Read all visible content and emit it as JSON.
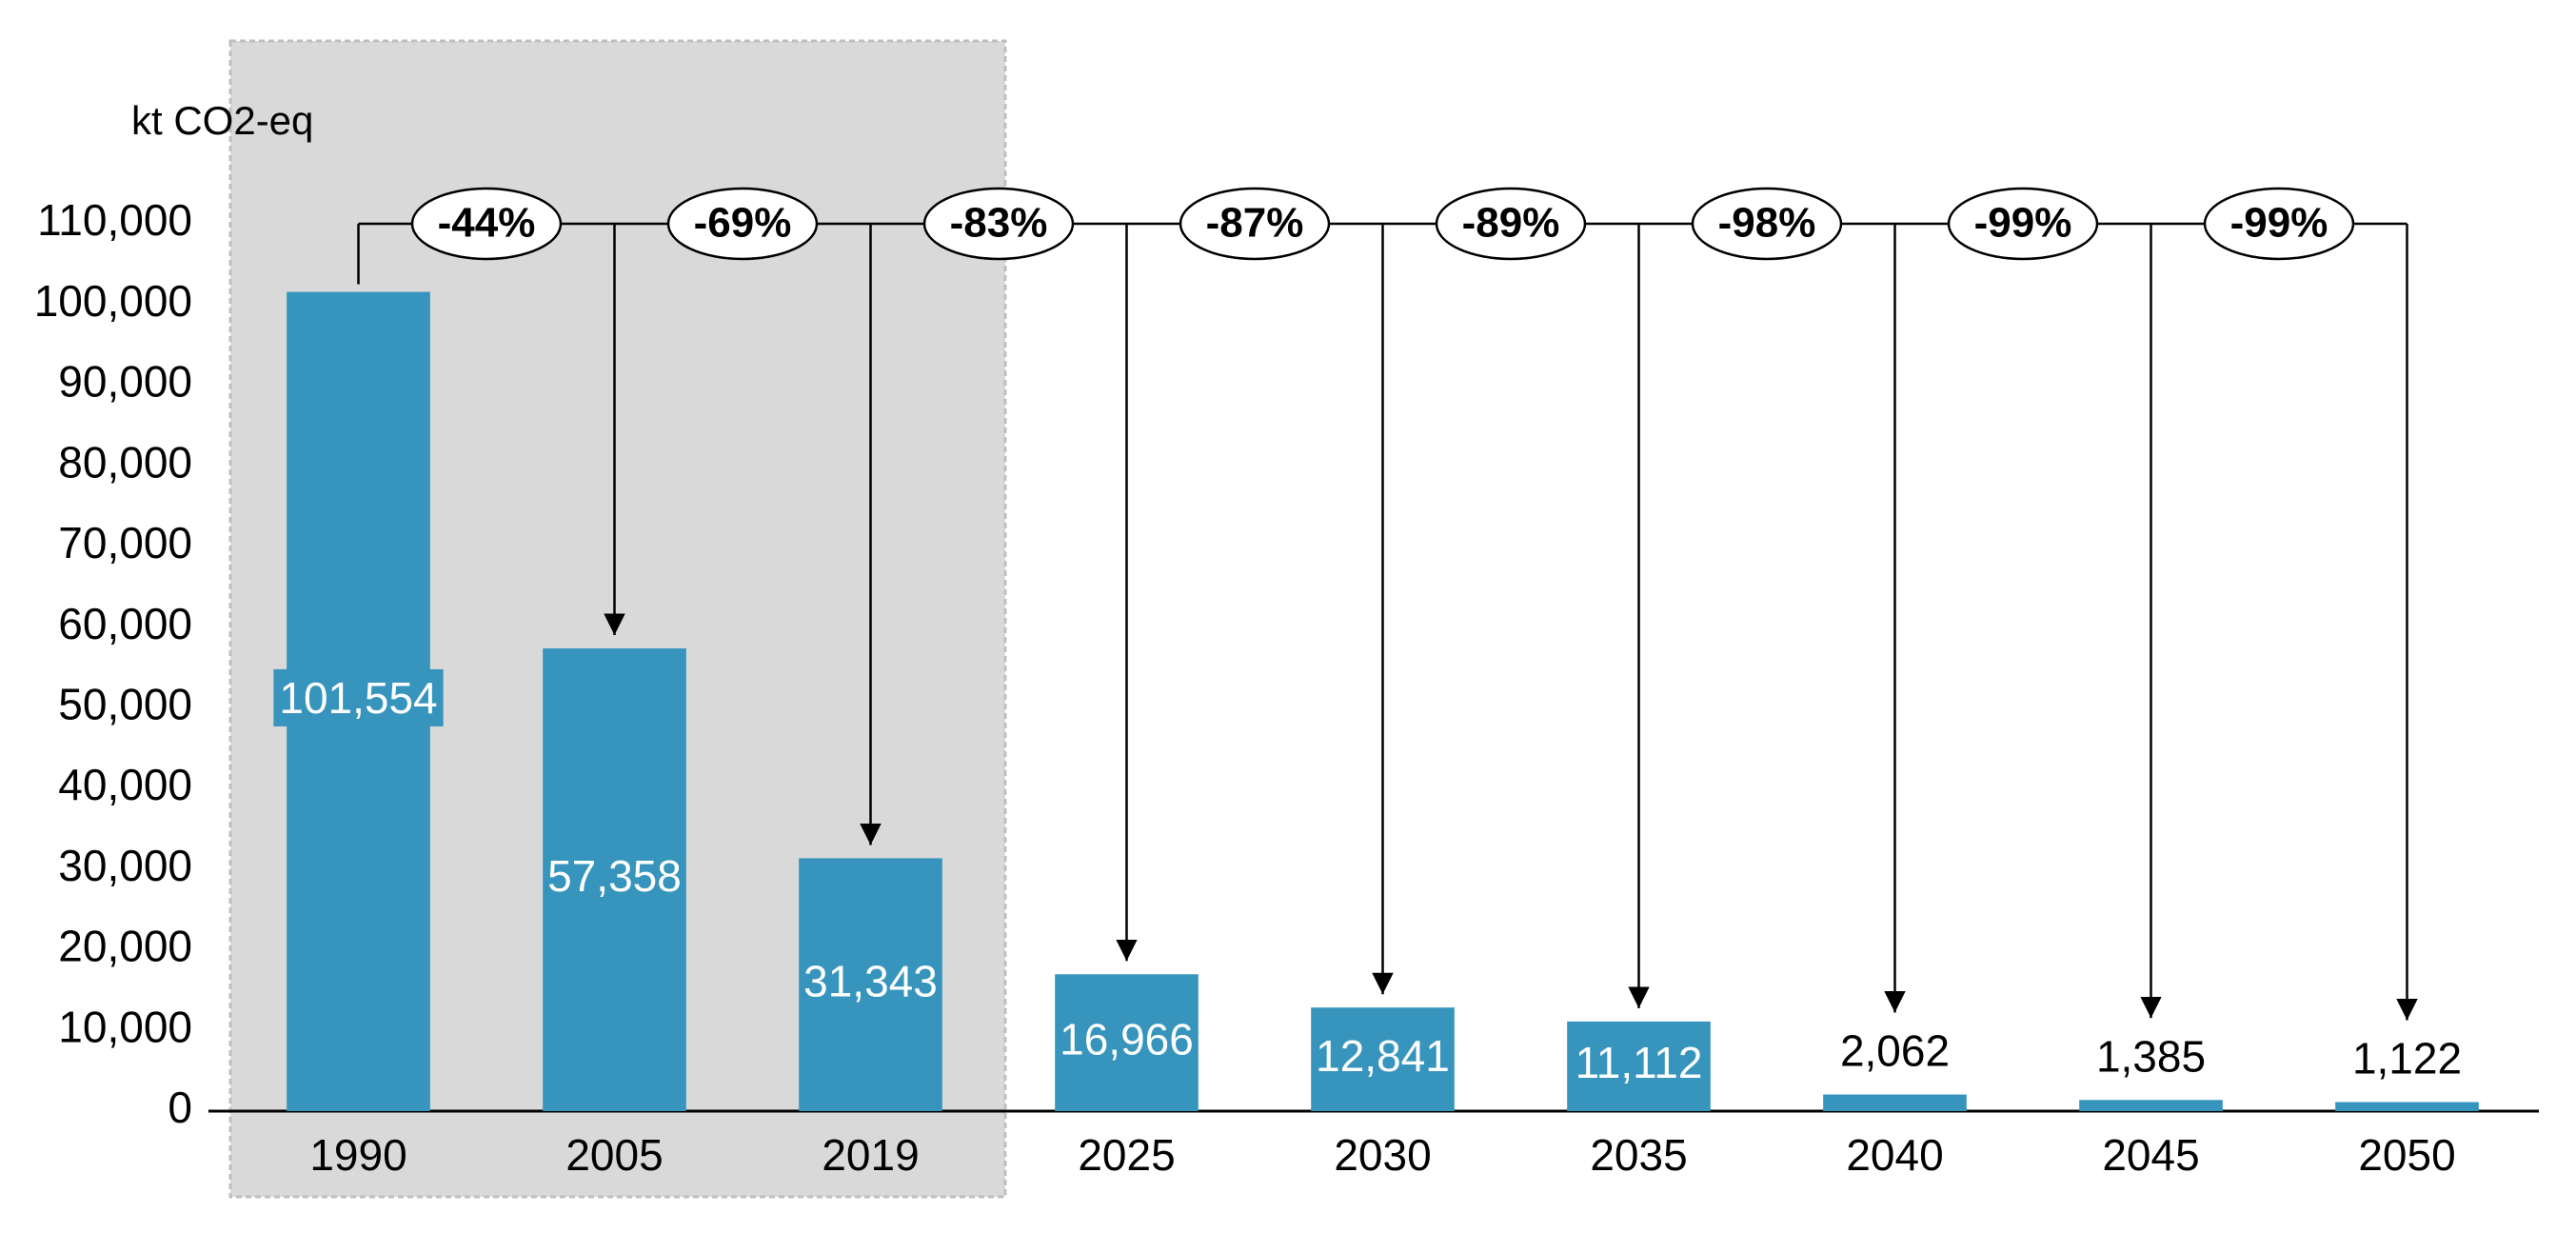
{
  "chart_data": {
    "type": "bar",
    "y_axis_label": "kt CO2-eq",
    "categories": [
      "1990",
      "2005",
      "2019",
      "2025",
      "2030",
      "2035",
      "2040",
      "2045",
      "2050"
    ],
    "values": [
      101554,
      57358,
      31343,
      16966,
      12841,
      11112,
      2062,
      1385,
      1122
    ],
    "value_labels": [
      "101,554",
      "57,358",
      "31,343",
      "16,966",
      "12,841",
      "11,112",
      "2,062",
      "1,385",
      "1,122"
    ],
    "color": "#3795bd",
    "changes": {
      "values": [
        -44,
        -69,
        -83,
        -87,
        -89,
        -98,
        -99,
        -99
      ],
      "value_labels": [
        "-44%",
        "-69%",
        "-83%",
        "-87%",
        "-89%",
        "-98%",
        "-99%",
        "-99%"
      ]
    },
    "ylim": [
      0,
      110000
    ],
    "yticks": [
      {
        "value": 0,
        "label": "0"
      },
      {
        "value": 10000,
        "label": "10,000"
      },
      {
        "value": 20000,
        "label": "20,000"
      },
      {
        "value": 30000,
        "label": "30,000"
      },
      {
        "value": 40000,
        "label": "40,000"
      },
      {
        "value": 50000,
        "label": "50,000"
      },
      {
        "value": 60000,
        "label": "60,000"
      },
      {
        "value": 70000,
        "label": "70,000"
      },
      {
        "value": 80000,
        "label": "80,000"
      },
      {
        "value": 90000,
        "label": "90,000"
      },
      {
        "value": 100000,
        "label": "100,000"
      },
      {
        "value": 110000,
        "label": "110,000"
      }
    ],
    "grid": false
  }
}
